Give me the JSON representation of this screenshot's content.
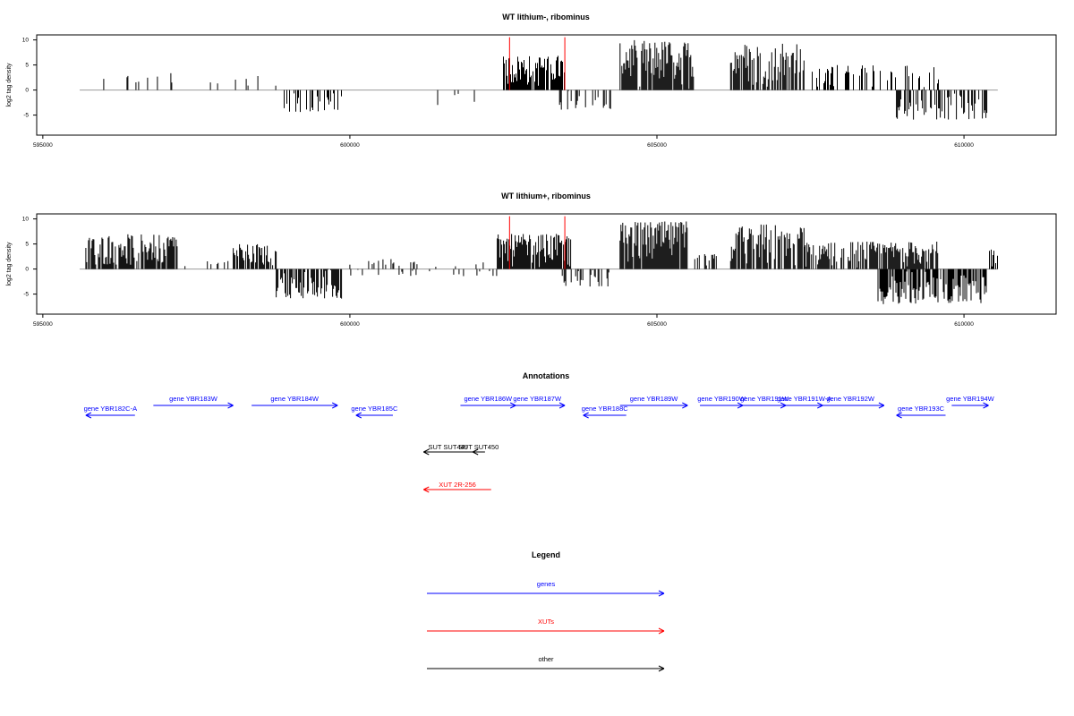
{
  "chart_data": [
    {
      "type": "bar",
      "title": "WT lithium-, ribominus",
      "ylabel": "log2 tag density",
      "xlim": [
        594900,
        611500
      ],
      "ylim": [
        -9,
        11
      ],
      "x_ticks": [
        595000,
        600000,
        605000,
        610000
      ],
      "x_tick_labels": [
        "595000",
        "600000",
        "605000",
        "610000"
      ],
      "y_ticks": [
        10,
        5,
        0,
        -5
      ],
      "y_tick_labels": [
        "10",
        "5",
        "0",
        "-5"
      ],
      "baseline": [
        595600,
        610550
      ],
      "markers": {
        "color": "#ff0000",
        "x": [
          602600,
          603500
        ],
        "ymin": 0,
        "ymax": 10
      },
      "series": [
        {
          "x_start": 595700,
          "x_end": 597200,
          "min": 0,
          "max": 3.5,
          "density": 0.12,
          "sign": 1
        },
        {
          "x_start": 597700,
          "x_end": 598800,
          "min": 0,
          "max": 3,
          "density": 0.12,
          "sign": 1
        },
        {
          "x_start": 598900,
          "x_end": 599900,
          "min": 0,
          "max": 4.5,
          "density": 0.4,
          "sign": -1
        },
        {
          "x_start": 601400,
          "x_end": 602100,
          "min": 0,
          "max": 3,
          "density": 0.05,
          "sign": -1
        },
        {
          "x_start": 602500,
          "x_end": 603500,
          "min": 0,
          "max": 7,
          "density": 0.9,
          "sign": 1
        },
        {
          "x_start": 603400,
          "x_end": 604300,
          "min": 0,
          "max": 4,
          "density": 0.3,
          "sign": -1
        },
        {
          "x_start": 604400,
          "x_end": 605600,
          "min": 0,
          "max": 10,
          "density": 0.95,
          "sign": 1
        },
        {
          "x_start": 606200,
          "x_end": 607400,
          "min": 0,
          "max": 9.5,
          "density": 0.7,
          "sign": 1
        },
        {
          "x_start": 607500,
          "x_end": 609600,
          "min": 0,
          "max": 5,
          "density": 0.35,
          "sign": 1
        },
        {
          "x_start": 608900,
          "x_end": 610400,
          "min": 0,
          "max": 6,
          "density": 0.45,
          "sign": -1
        }
      ]
    },
    {
      "type": "bar",
      "title": "WT lithium+, ribominus",
      "ylabel": "log2 tag density",
      "xlim": [
        594900,
        611500
      ],
      "ylim": [
        -9,
        11
      ],
      "x_ticks": [
        595000,
        600000,
        605000,
        610000
      ],
      "x_tick_labels": [
        "595000",
        "600000",
        "605000",
        "610000"
      ],
      "y_ticks": [
        10,
        5,
        0,
        -5
      ],
      "y_tick_labels": [
        "10",
        "5",
        "0",
        "-5"
      ],
      "baseline": [
        595600,
        610550
      ],
      "markers": {
        "color": "#ff0000",
        "x": [
          602600,
          603500
        ],
        "ymin": 0,
        "ymax": 10
      },
      "series": [
        {
          "x_start": 595700,
          "x_end": 597200,
          "min": 0,
          "max": 7,
          "density": 0.85,
          "sign": 1
        },
        {
          "x_start": 597300,
          "x_end": 598500,
          "min": 0,
          "max": 2,
          "density": 0.15,
          "sign": 1
        },
        {
          "x_start": 598100,
          "x_end": 598800,
          "min": 0,
          "max": 5,
          "density": 0.7,
          "sign": 1
        },
        {
          "x_start": 598800,
          "x_end": 599900,
          "min": 0,
          "max": 6,
          "density": 0.75,
          "sign": -1
        },
        {
          "x_start": 600000,
          "x_end": 602200,
          "min": 0,
          "max": 2,
          "density": 0.12,
          "sign": 1
        },
        {
          "x_start": 600000,
          "x_end": 602400,
          "min": 0,
          "max": 1.5,
          "density": 0.1,
          "sign": -1
        },
        {
          "x_start": 602400,
          "x_end": 603600,
          "min": 0,
          "max": 7,
          "density": 0.95,
          "sign": 1
        },
        {
          "x_start": 603400,
          "x_end": 604300,
          "min": 0,
          "max": 3.5,
          "density": 0.35,
          "sign": -1
        },
        {
          "x_start": 604400,
          "x_end": 605500,
          "min": 0,
          "max": 9.5,
          "density": 0.95,
          "sign": 1
        },
        {
          "x_start": 605500,
          "x_end": 606000,
          "min": 0,
          "max": 3,
          "density": 0.4,
          "sign": 1
        },
        {
          "x_start": 606200,
          "x_end": 607400,
          "min": 0,
          "max": 9,
          "density": 0.85,
          "sign": 1
        },
        {
          "x_start": 607400,
          "x_end": 609600,
          "min": 0,
          "max": 5.5,
          "density": 0.75,
          "sign": 1
        },
        {
          "x_start": 608600,
          "x_end": 610400,
          "min": 0,
          "max": 7,
          "density": 0.75,
          "sign": -1
        },
        {
          "x_start": 609600,
          "x_end": 609700,
          "min": 8,
          "max": 8.5,
          "density": 0.2,
          "sign": -1
        },
        {
          "x_start": 610400,
          "x_end": 610550,
          "min": 0,
          "max": 4,
          "density": 0.6,
          "sign": 1
        }
      ]
    }
  ],
  "annotations": {
    "title": "Annotations",
    "genes_color": "#0000ff",
    "xut_color": "#ff0000",
    "other_color": "#000000",
    "genes": [
      {
        "label": "gene YBR182C-A",
        "start": 595700,
        "end": 596500,
        "strand": "-",
        "row": "low"
      },
      {
        "label": "gene YBR183W",
        "start": 596800,
        "end": 598100,
        "strand": "+",
        "row": "high"
      },
      {
        "label": "gene YBR184W",
        "start": 598400,
        "end": 599800,
        "strand": "+",
        "row": "high"
      },
      {
        "label": "gene YBR185C",
        "start": 600100,
        "end": 600700,
        "strand": "-",
        "row": "low"
      },
      {
        "label": "gene YBR186W",
        "start": 601800,
        "end": 602700,
        "strand": "+",
        "row": "high"
      },
      {
        "label": "gene YBR187W",
        "start": 602600,
        "end": 603500,
        "strand": "+",
        "row": "high"
      },
      {
        "label": "gene YBR188C",
        "start": 603800,
        "end": 604500,
        "strand": "-",
        "row": "low"
      },
      {
        "label": "gene YBR189W",
        "start": 604400,
        "end": 605500,
        "strand": "+",
        "row": "high"
      },
      {
        "label": "gene YBR190W",
        "start": 605700,
        "end": 606400,
        "strand": "+",
        "row": "high"
      },
      {
        "label": "gene YBR191W",
        "start": 606400,
        "end": 607100,
        "strand": "+",
        "row": "high"
      },
      {
        "label": "gene YBR191W-A",
        "start": 607100,
        "end": 607700,
        "strand": "+",
        "row": "high"
      },
      {
        "label": "gene YBR192W",
        "start": 607600,
        "end": 608700,
        "strand": "+",
        "row": "high"
      },
      {
        "label": "gene YBR193C",
        "start": 608900,
        "end": 609700,
        "strand": "-",
        "row": "low"
      },
      {
        "label": "gene YBR194W",
        "start": 609800,
        "end": 610400,
        "strand": "+",
        "row": "high"
      }
    ],
    "other": [
      {
        "label": "SUT SUT449",
        "start": 601200,
        "end": 602000,
        "strand": "-"
      },
      {
        "label": "SUT SUT450",
        "start": 602000,
        "end": 602200,
        "strand": "-"
      }
    ],
    "xuts": [
      {
        "label": "XUT 2R-256",
        "start": 601200,
        "end": 602300,
        "strand": "-"
      }
    ]
  },
  "legend": {
    "title": "Legend",
    "items": [
      {
        "label": "genes",
        "color": "#0000ff"
      },
      {
        "label": "XUTs",
        "color": "#ff0000"
      },
      {
        "label": "other",
        "color": "#000000"
      }
    ]
  }
}
